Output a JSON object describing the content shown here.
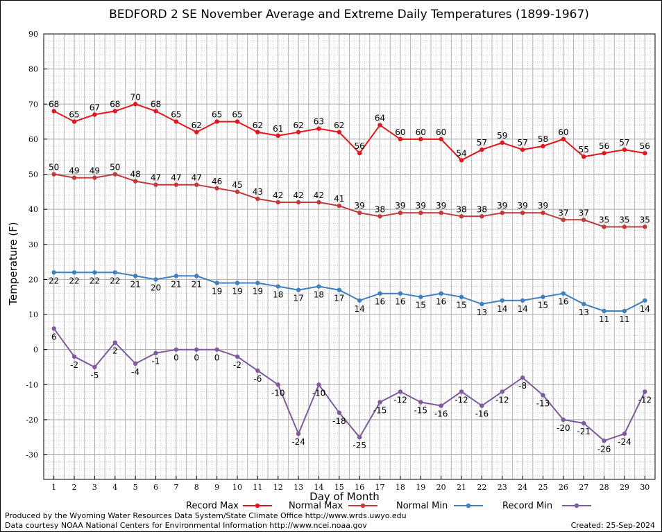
{
  "chart_data": {
    "type": "line",
    "title": "BEDFORD 2 SE November Average and Extreme Daily Temperatures (1899-1967)",
    "xlabel": "Day of Month",
    "ylabel": "Temperature (F)",
    "xlim": [
      0.5,
      30.5
    ],
    "ylim": [
      -37,
      90
    ],
    "yticks": [
      -30,
      -20,
      -10,
      0,
      10,
      20,
      30,
      40,
      50,
      60,
      70,
      80,
      90
    ],
    "x": [
      1,
      2,
      3,
      4,
      5,
      6,
      7,
      8,
      9,
      10,
      11,
      12,
      13,
      14,
      15,
      16,
      17,
      18,
      19,
      20,
      21,
      22,
      23,
      24,
      25,
      26,
      27,
      28,
      29,
      30
    ],
    "grid": true,
    "legend_position": "bottom",
    "series": [
      {
        "name": "Record Max",
        "color": "#e8131b",
        "values": [
          68,
          65,
          67,
          68,
          70,
          68,
          65,
          62,
          65,
          65,
          62,
          61,
          62,
          63,
          62,
          56,
          64,
          60,
          60,
          60,
          54,
          57,
          59,
          57,
          58,
          60,
          55,
          56,
          57,
          56
        ]
      },
      {
        "name": "Normal Max",
        "color": "#c2393c",
        "values": [
          50,
          49,
          49,
          50,
          48,
          47,
          47,
          47,
          46,
          45,
          43,
          42,
          42,
          42,
          41,
          39,
          38,
          39,
          39,
          39,
          38,
          38,
          39,
          39,
          39,
          37,
          37,
          35,
          35,
          35
        ]
      },
      {
        "name": "Normal Min",
        "color": "#3e7fbf",
        "values": [
          22,
          22,
          22,
          22,
          21,
          20,
          21,
          21,
          19,
          19,
          19,
          18,
          17,
          18,
          17,
          14,
          16,
          16,
          15,
          16,
          15,
          13,
          14,
          14,
          15,
          16,
          13,
          11,
          11,
          14
        ]
      },
      {
        "name": "Record Min",
        "color": "#7f58a0",
        "values": [
          6,
          -2,
          -5,
          2,
          -4,
          -1,
          0,
          0,
          0,
          -2,
          -6,
          -10,
          -24,
          -10,
          -18,
          -25,
          -15,
          -12,
          -15,
          -16,
          -12,
          -16,
          -12,
          -8,
          -13,
          -20,
          -21,
          -26,
          -24,
          -12
        ]
      }
    ]
  },
  "footer": {
    "produced_by": "Produced by the Wyoming Water Resources Data System/State Climate Office http://www.wrds.uwyo.edu",
    "data_courtesy": "Data courtesy NOAA National Centers for Environmental Information http://www.ncei.noaa.gov",
    "created": "Created:  25-Sep-2024"
  }
}
